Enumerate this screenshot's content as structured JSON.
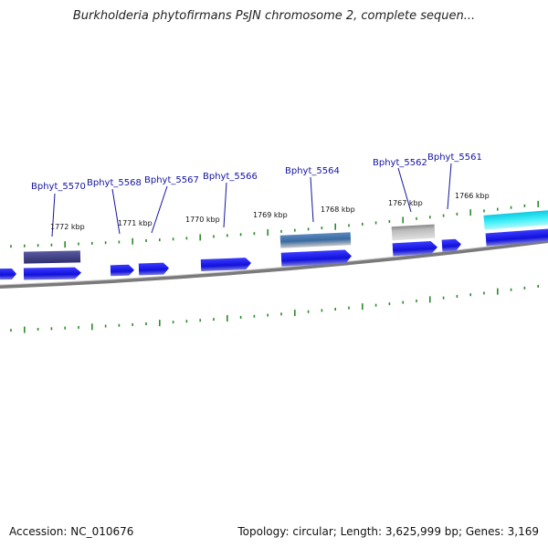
{
  "title": "Burkholderia phytofirmans PsJN chromosome 2, complete sequen...",
  "footer": {
    "accession": "Accession: NC_010676",
    "summary": "Topology: circular; Length: 3,625,999 bp; Genes: 3,169"
  },
  "gene_labels": [
    "Bphyt_5570",
    "Bphyt_5568",
    "Bphyt_5567",
    "Bphyt_5566",
    "Bphyt_5564",
    "Bphyt_5562",
    "Bphyt_5561"
  ],
  "scale_labels": [
    "1772 kbp",
    "1771 kbp",
    "1770 kbp",
    "1769 kbp",
    "1768 kbp",
    "1767 kbp",
    "1766 kbp"
  ],
  "colors": {
    "gene": "#1a1aee",
    "backbone": "#777777",
    "tick": "#2a8a2a",
    "label": "#1414a0",
    "feature_purple": "#4a4a90",
    "feature_steel": "#4a78b0",
    "feature_gray": "#9a9a9a",
    "feature_cyan": "#20d8e8"
  }
}
